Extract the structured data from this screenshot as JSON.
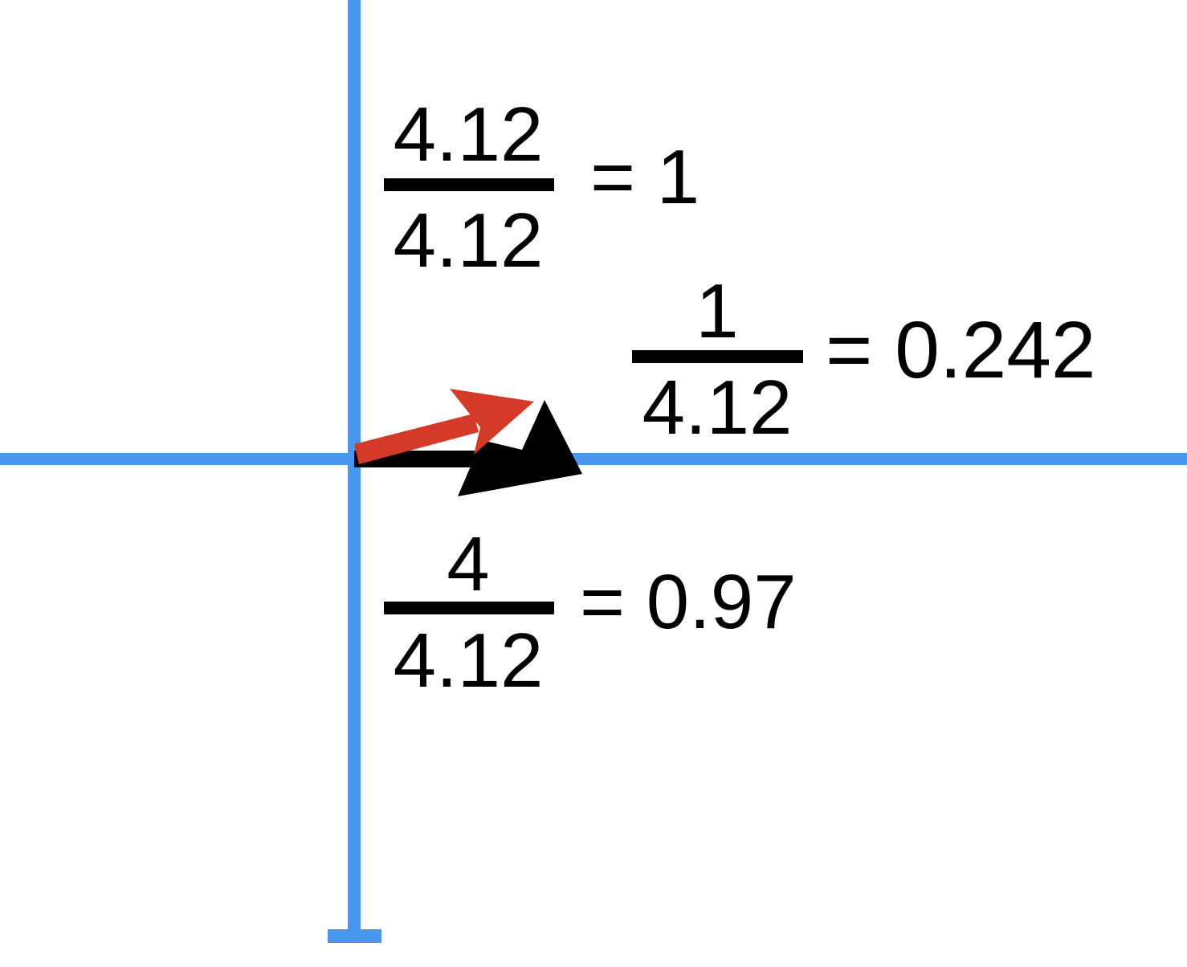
{
  "equations": [
    {
      "numerator": "4.12",
      "denominator": "4.12",
      "relation": "=",
      "result": "1"
    },
    {
      "numerator": "1",
      "denominator": "4.12",
      "relation": "=",
      "result": "0.242"
    },
    {
      "numerator": "4",
      "denominator": "4.12",
      "relation": "=",
      "result": "0.97"
    }
  ]
}
